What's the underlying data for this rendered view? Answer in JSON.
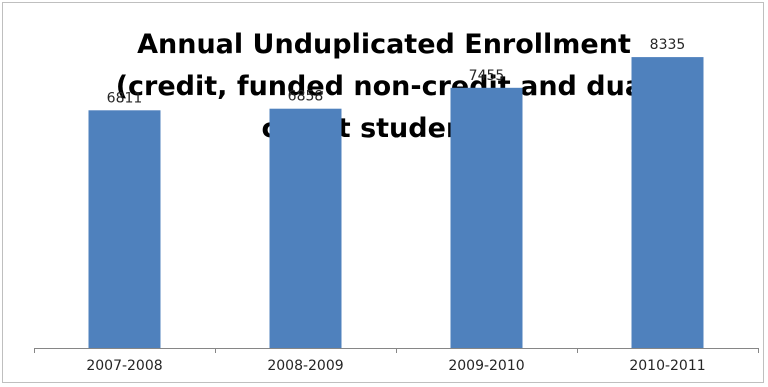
{
  "chart_data": {
    "type": "bar",
    "title": "Annual Unduplicated Enrollment (credit, funded non-credit and dual credit students)",
    "title_lines": [
      "Annual Unduplicated Enrollment",
      "(credit, funded non-credit and dual",
      "credit students)"
    ],
    "categories": [
      "2007-2008",
      "2008-2009",
      "2009-2010",
      "2010-2011"
    ],
    "values": [
      6811,
      6858,
      7455,
      8335
    ],
    "data_labels": [
      "6811",
      "6858",
      "7455",
      "8335"
    ],
    "xlabel": "",
    "ylabel": "",
    "ylim": [
      0,
      10000
    ],
    "grid": false,
    "legend": "none",
    "bar_color": "#4f81bd"
  }
}
